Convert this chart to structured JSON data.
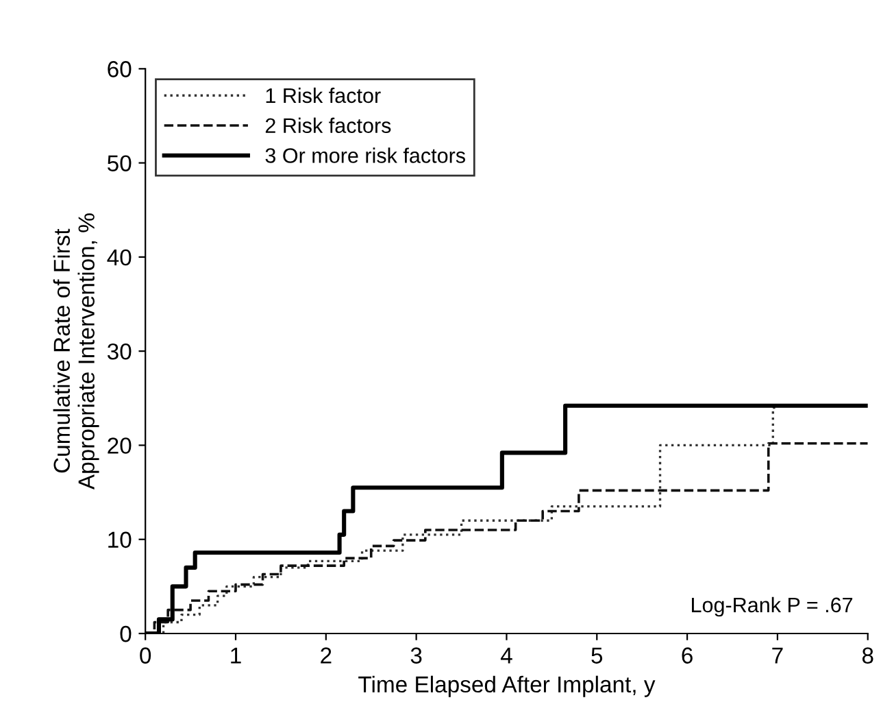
{
  "chart_data": {
    "type": "step",
    "xlabel": "Time Elapsed After Implant, y",
    "ylabel": "Cumulative Rate of First\nAppropriate Intervention, %",
    "xlim": [
      0,
      8
    ],
    "ylim": [
      0,
      60
    ],
    "xticks": [
      0,
      1,
      2,
      3,
      4,
      5,
      6,
      7,
      8
    ],
    "yticks": [
      0,
      10,
      20,
      30,
      40,
      50,
      60
    ],
    "grid": false,
    "legend": "top left",
    "series": [
      {
        "name": "1 Risk factor",
        "color": "#333333",
        "line_style": "dotted",
        "x": [
          0,
          0.2,
          0.4,
          0.6,
          0.8,
          0.9,
          1.2,
          1.5,
          1.8,
          2.4,
          2.85,
          3.5,
          4.5,
          5.7,
          6.95,
          7.0
        ],
        "values": [
          0,
          1.2,
          2,
          3,
          4,
          5,
          6,
          7,
          7.7,
          8.8,
          10.5,
          12,
          13.5,
          20,
          24,
          24
        ]
      },
      {
        "name": "2 Risk factors",
        "color": "#111111",
        "line_style": "dashed",
        "x": [
          0,
          0.1,
          0.25,
          0.5,
          0.7,
          1.0,
          1.3,
          1.5,
          2.2,
          2.5,
          2.75,
          3.1,
          4.1,
          4.4,
          4.8,
          6.9,
          8.0
        ],
        "values": [
          0,
          1.2,
          2.5,
          3.5,
          4.5,
          5.2,
          6.3,
          7.2,
          8,
          9.3,
          9.9,
          11,
          12,
          13,
          15.2,
          20.2,
          20.2
        ]
      },
      {
        "name": "3 Or more risk factors",
        "color": "#000000",
        "line_style": "solid",
        "x": [
          0,
          0.15,
          0.3,
          0.45,
          0.55,
          2.15,
          2.2,
          2.3,
          3.95,
          4.65,
          8.0
        ],
        "values": [
          0,
          1.5,
          5,
          7,
          8.6,
          10.5,
          13,
          15.5,
          19.2,
          24.2,
          24.2
        ]
      }
    ],
    "annotations": [
      "Log-Rank P = .67"
    ]
  }
}
